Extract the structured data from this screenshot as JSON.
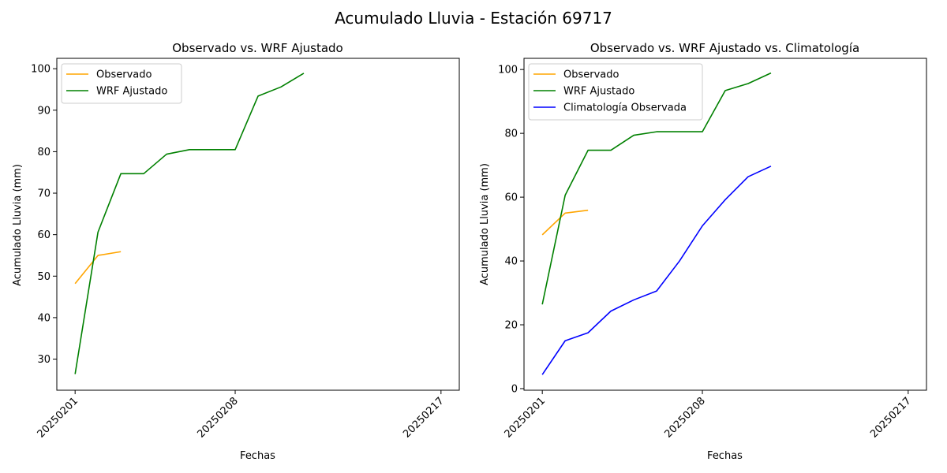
{
  "figure": {
    "suptitle": "Acumulado Lluvia - Estación 69717"
  },
  "chart_data": [
    {
      "type": "line",
      "title": "Observado vs. WRF Ajustado",
      "xlabel": "Fechas",
      "ylabel": "Acumulado Lluvia (mm)",
      "x_ticks": [
        "20250201",
        "20250208",
        "20250217"
      ],
      "ylim": [
        22.5,
        102.5
      ],
      "y_ticks": [
        30,
        40,
        50,
        60,
        70,
        80,
        90,
        100
      ],
      "legend": "upper-left",
      "series": [
        {
          "name": "Observado",
          "color": "#ffa500",
          "dates": [
            "20250201",
            "20250202",
            "20250203"
          ],
          "values": [
            48.2,
            55.0,
            55.9
          ]
        },
        {
          "name": "WRF Ajustado",
          "color": "#008000",
          "dates": [
            "20250201",
            "20250202",
            "20250203",
            "20250204",
            "20250205",
            "20250206",
            "20250207",
            "20250208",
            "20250209",
            "20250210",
            "20250211"
          ],
          "values": [
            26.4,
            60.6,
            74.7,
            74.7,
            79.4,
            80.5,
            80.5,
            80.5,
            93.4,
            95.6,
            98.9
          ]
        }
      ]
    },
    {
      "type": "line",
      "title": "Observado vs. WRF Ajustado vs. Climatología",
      "xlabel": "Fechas",
      "ylabel": "Acumulado Lluvia (mm)",
      "x_ticks": [
        "20250201",
        "20250208",
        "20250217"
      ],
      "ylim": [
        -0.5,
        103.5
      ],
      "y_ticks": [
        0,
        20,
        40,
        60,
        80,
        100
      ],
      "legend": "upper-left",
      "series": [
        {
          "name": "Observado",
          "color": "#ffa500",
          "dates": [
            "20250201",
            "20250202",
            "20250203"
          ],
          "values": [
            48.2,
            55.0,
            55.9
          ]
        },
        {
          "name": "WRF Ajustado",
          "color": "#008000",
          "dates": [
            "20250201",
            "20250202",
            "20250203",
            "20250204",
            "20250205",
            "20250206",
            "20250207",
            "20250208",
            "20250209",
            "20250210",
            "20250211"
          ],
          "values": [
            26.4,
            60.6,
            74.7,
            74.7,
            79.4,
            80.5,
            80.5,
            80.5,
            93.4,
            95.6,
            98.9
          ]
        },
        {
          "name": "Climatología Observada",
          "color": "#0000ff",
          "dates": [
            "20250201",
            "20250202",
            "20250203",
            "20250204",
            "20250205",
            "20250206",
            "20250207",
            "20250208",
            "20250209",
            "20250210",
            "20250211"
          ],
          "values": [
            4.4,
            15.0,
            17.5,
            24.3,
            27.8,
            30.6,
            40.0,
            51.0,
            59.2,
            66.4,
            69.7
          ]
        }
      ]
    }
  ]
}
